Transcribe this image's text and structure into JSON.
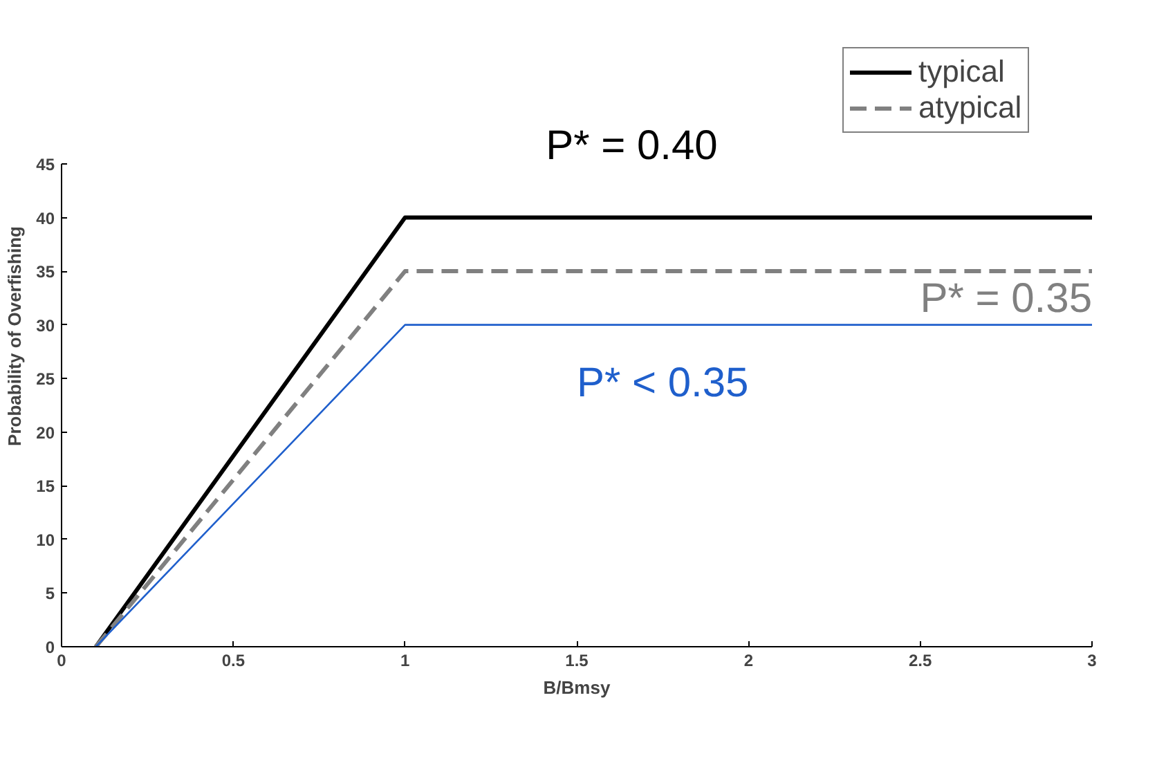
{
  "chart_data": {
    "type": "line",
    "xlabel": "B/Bmsy",
    "ylabel": "Probability of Overfishing",
    "xlim": [
      0,
      3
    ],
    "ylim": [
      0,
      45
    ],
    "xticks": [
      0,
      0.5,
      1,
      1.5,
      2,
      2.5,
      3
    ],
    "yticks": [
      0,
      5,
      10,
      15,
      20,
      25,
      30,
      35,
      40,
      45
    ],
    "series": [
      {
        "name": "typical",
        "color": "#000000",
        "x": [
          0.1,
          1,
          3
        ],
        "values": [
          0,
          40,
          40
        ],
        "line_style": "solid"
      },
      {
        "name": "atypical",
        "color": "#808080",
        "x": [
          0.1,
          1,
          3
        ],
        "values": [
          0,
          35,
          35
        ],
        "line_style": "dashed"
      },
      {
        "color": "#1f5fcc",
        "x": [
          0.1,
          1,
          3
        ],
        "values": [
          0,
          30,
          30
        ],
        "line_style": "solid"
      }
    ],
    "annotations": [
      "P* = 0.40",
      "P* = 0.35",
      "P* < 0.35"
    ],
    "legend": "top right",
    "grid": false,
    "marker": "none"
  }
}
